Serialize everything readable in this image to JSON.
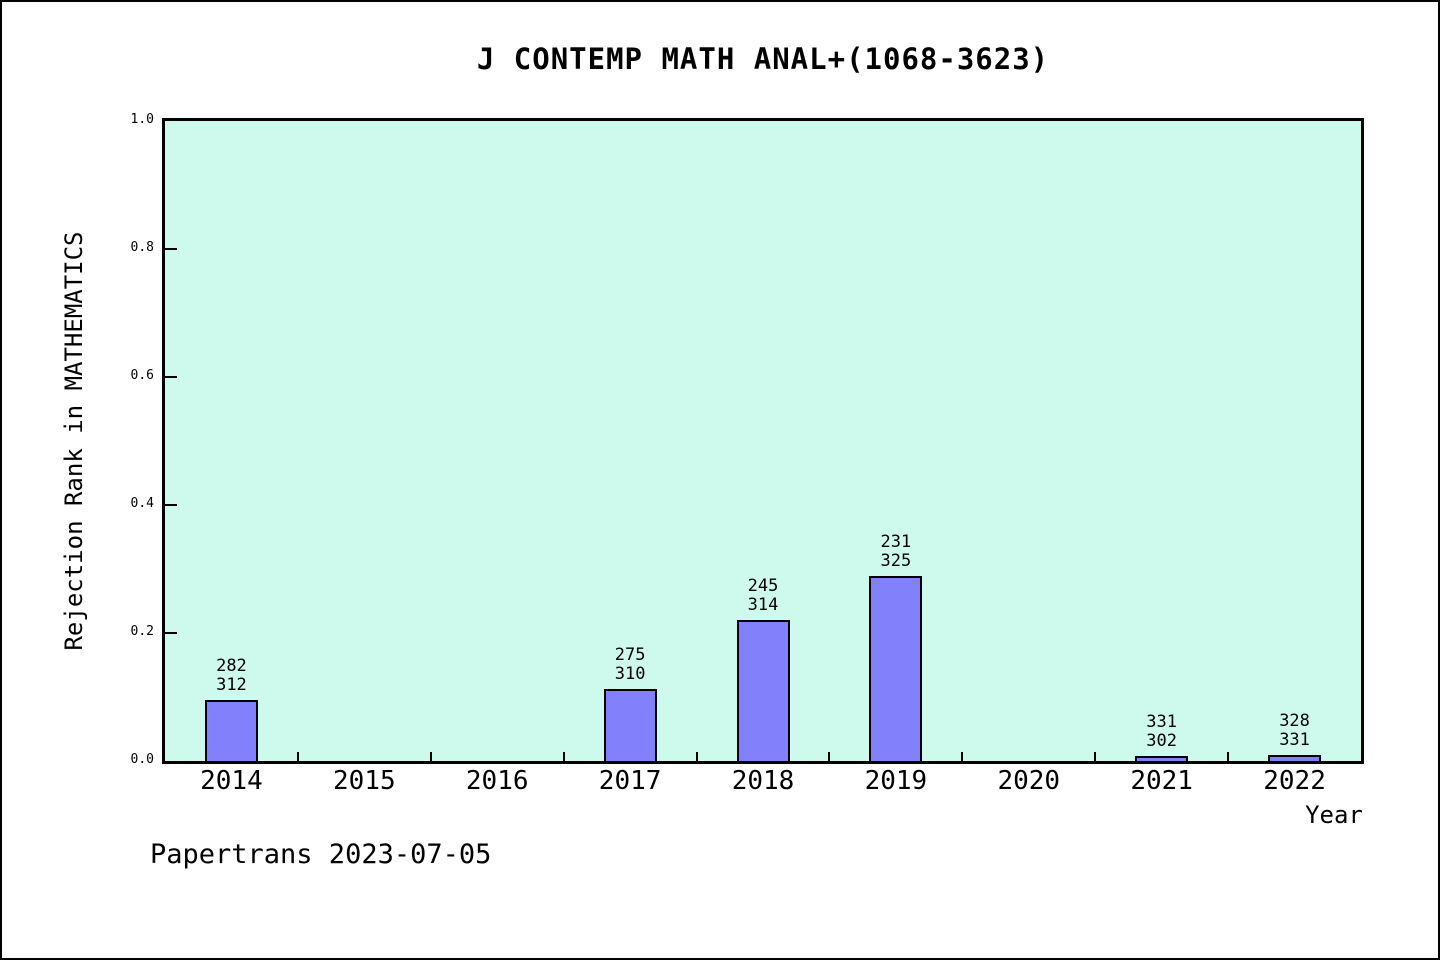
{
  "title": "J CONTEMP MATH ANAL+(1068-3623)",
  "footer": "Papertrans 2023-07-05",
  "chart_data": {
    "type": "bar",
    "title": "J CONTEMP MATH ANAL+(1068-3623)",
    "xlabel": "Year",
    "ylabel": "Rejection Rank in MATHEMATICS",
    "categories": [
      "2014",
      "2015",
      "2016",
      "2017",
      "2018",
      "2019",
      "2020",
      "2021",
      "2022"
    ],
    "values": [
      0.096,
      0,
      0,
      0.113,
      0.22,
      0.289,
      0,
      0.008,
      0.01
    ],
    "bar_labels": [
      [
        "282",
        "312"
      ],
      null,
      null,
      [
        "275",
        "310"
      ],
      [
        "245",
        "314"
      ],
      [
        "231",
        "325"
      ],
      null,
      [
        "331",
        "302"
      ],
      [
        "328",
        "331"
      ]
    ],
    "ylim": [
      0,
      1
    ],
    "yticks": [
      0.0,
      0.2,
      0.4,
      0.6,
      0.8,
      1.0
    ],
    "ytick_labels": [
      "0.0",
      "0.2",
      "0.4",
      "0.6",
      "0.8",
      "1.0"
    ],
    "grid": false,
    "legend_position": "none",
    "colors": {
      "page_background": "#ffffff",
      "plot_background": "#cdfaec",
      "bar_fill": "#8280fa",
      "bar_edge": "#000000",
      "frame": "#000000",
      "text": "#000000"
    }
  }
}
